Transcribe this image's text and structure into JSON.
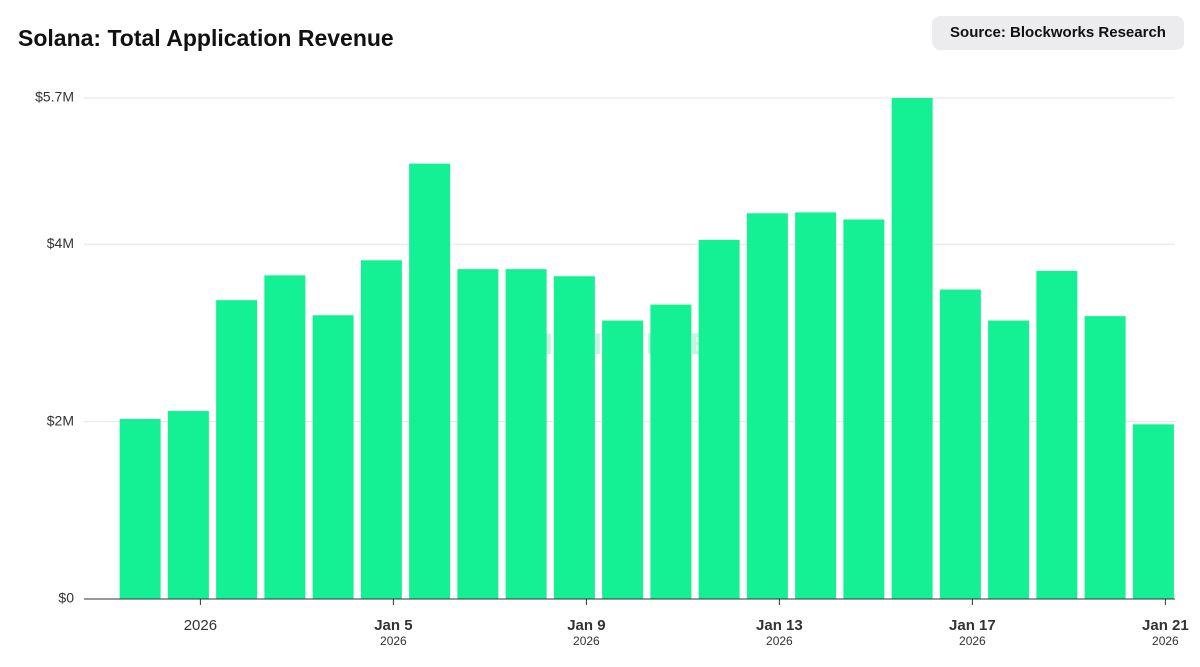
{
  "chart_data": {
    "type": "bar",
    "title": "Solana: Total Application Revenue",
    "source": "Source: Blockworks Research",
    "watermark": "LIGHTSPEED",
    "categories": [
      null,
      "2026",
      null,
      null,
      null,
      "Jan 5",
      null,
      null,
      null,
      "Jan 9",
      null,
      null,
      null,
      "Jan 13",
      null,
      null,
      null,
      "Jan 17",
      null,
      null,
      null,
      "Jan 21"
    ],
    "category_sublabels": [
      null,
      null,
      null,
      null,
      null,
      "2026",
      null,
      null,
      null,
      "2026",
      null,
      null,
      null,
      "2026",
      null,
      null,
      null,
      "2026",
      null,
      null,
      null,
      "2026"
    ],
    "values": [
      2030000,
      2120000,
      3370000,
      3650000,
      3200000,
      3820000,
      4910000,
      3720000,
      3720000,
      3640000,
      3140000,
      3320000,
      4050000,
      4350000,
      4360000,
      4280000,
      5650000,
      3490000,
      3140000,
      3700000,
      3190000,
      1970000
    ],
    "color": "#14f195",
    "ylim": [
      0,
      5650000
    ],
    "yticks": [
      {
        "value": 0,
        "label": "$0"
      },
      {
        "value": 2000000,
        "label": "$2M"
      },
      {
        "value": 4000000,
        "label": "$4M"
      },
      {
        "value": 5650000,
        "label": "$5.7M"
      }
    ],
    "grid": true
  }
}
